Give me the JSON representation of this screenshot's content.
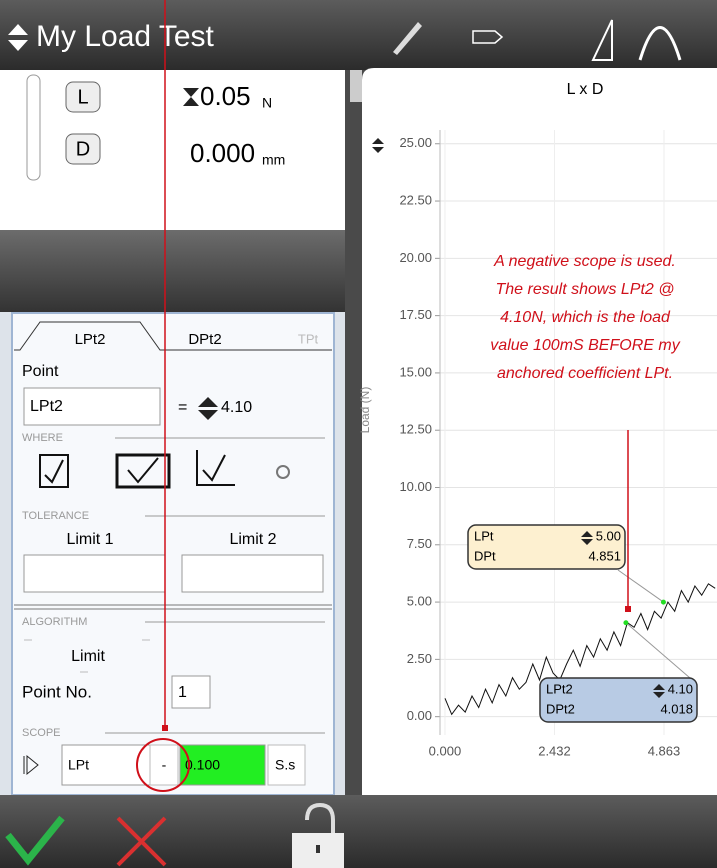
{
  "header": {
    "title": "My Load Test"
  },
  "readings": [
    {
      "button": "L",
      "value": "0.05",
      "unit": "N"
    },
    {
      "button": "D",
      "value": "0.000",
      "unit": "mm"
    }
  ],
  "form": {
    "tabs": [
      "LPt2",
      "DPt2",
      "TPt"
    ],
    "point_label": "Point",
    "point_name": "LPt2",
    "point_equals": "=",
    "point_value": "4.10",
    "where_label": "WHERE",
    "tolerance_label": "TOLERANCE",
    "limit1": "Limit 1",
    "limit2": "Limit 2",
    "algorithm_label": "ALGORITHM",
    "algorithm": "Limit",
    "point_no_label": "Point No.",
    "point_no": "1",
    "scope_label": "SCOPE",
    "scope_anchor": "LPt",
    "scope_sign": "-",
    "scope_value": "0.100",
    "scope_unit": "S.s"
  },
  "chart_data": {
    "type": "line",
    "title": "L x D",
    "y_label": "Load (N)",
    "color": "#111111",
    "grid": true,
    "xlim": [
      -0.11,
      6.04
    ],
    "ylim": [
      -0.8,
      25.6
    ],
    "xticks": [
      {
        "value": 0,
        "label": "0.000"
      },
      {
        "value": 2.432,
        "label": "2.432"
      },
      {
        "value": 4.863,
        "label": "4.863"
      }
    ],
    "yticks": [
      {
        "value": 0,
        "label": "0.00"
      },
      {
        "value": 2.5,
        "label": "2.50"
      },
      {
        "value": 5,
        "label": "5.00"
      },
      {
        "value": 7.5,
        "label": "7.50"
      },
      {
        "value": 10,
        "label": "10.00"
      },
      {
        "value": 12.5,
        "label": "12.50"
      },
      {
        "value": 15,
        "label": "15.00"
      },
      {
        "value": 17.5,
        "label": "17.50"
      },
      {
        "value": 20,
        "label": "20.00"
      },
      {
        "value": 22.5,
        "label": "22.50"
      },
      {
        "value": 25,
        "label": "25.00"
      }
    ],
    "x": [
      0,
      0.15,
      0.3,
      0.45,
      0.6,
      0.75,
      0.9,
      1.05,
      1.2,
      1.35,
      1.5,
      1.65,
      1.8,
      1.95,
      2.1,
      2.25,
      2.4,
      2.55,
      2.7,
      2.85,
      3.0,
      3.15,
      3.3,
      3.45,
      3.6,
      3.75,
      3.9,
      4.05,
      4.2,
      4.35,
      4.5,
      4.65,
      4.8,
      4.95,
      5.1,
      5.25,
      5.4,
      5.55,
      5.7,
      5.85,
      6.0
    ],
    "values": [
      0.8,
      0.1,
      0.5,
      0.2,
      0.9,
      0.4,
      1.2,
      0.6,
      1.4,
      0.9,
      1.7,
      1.2,
      1.5,
      2.3,
      1.6,
      2.6,
      1.9,
      1.6,
      2.3,
      2.9,
      2.2,
      3.1,
      2.6,
      3.4,
      2.9,
      3.7,
      3.1,
      4.1,
      3.9,
      4.5,
      3.8,
      4.6,
      4.3,
      5.0,
      4.6,
      5.5,
      5.0,
      5.7,
      5.3,
      5.8,
      5.6
    ],
    "annotation": [
      "A negative scope is used.",
      "The result shows LPt2 @",
      "4.10N, which is the load",
      "value 100mS BEFORE my",
      "anchored coefficient LPt."
    ],
    "callouts": [
      {
        "load_name": "LPt",
        "distance_name": "DPt",
        "load": 5.0,
        "load_label": "5.00",
        "distance": 4.851
      },
      {
        "load_name": "LPt2",
        "distance_name": "DPt2",
        "load": 4.1,
        "load_label": "4.10",
        "distance": 4.018
      }
    ]
  }
}
